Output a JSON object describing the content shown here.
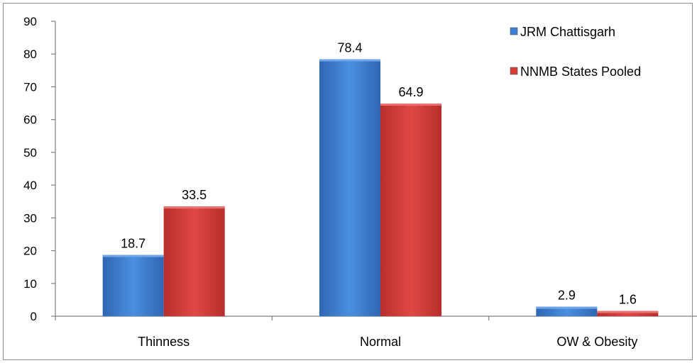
{
  "chart_data": {
    "type": "bar",
    "categories": [
      "Thinness",
      "Normal",
      "OW & Obesity"
    ],
    "series": [
      {
        "name": "JRM Chattisgarh",
        "values": [
          18.7,
          78.4,
          2.9
        ],
        "color": "#3c7fd4",
        "data_labels": [
          "18.7",
          "78.4",
          "2.9"
        ]
      },
      {
        "name": "NNMB States Pooled",
        "values": [
          33.5,
          64.9,
          1.6
        ],
        "color": "#d63b38",
        "data_labels": [
          "33.5",
          "64.9",
          "1.6"
        ]
      }
    ],
    "yticks": [
      "0",
      "10",
      "20",
      "30",
      "40",
      "50",
      "60",
      "70",
      "80",
      "90"
    ],
    "ylim": [
      0,
      90
    ],
    "grid": false,
    "legend_position": "top-right",
    "title": "",
    "xlabel": "",
    "ylabel": ""
  }
}
